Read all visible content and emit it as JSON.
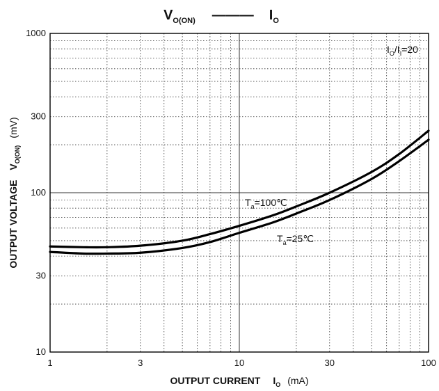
{
  "chart_data": {
    "type": "line",
    "title": {
      "left_main": "V",
      "left_sub": "O(ON)",
      "right_main": "I",
      "right_sub": "O"
    },
    "xlabel": {
      "text": "OUTPUT CURRENT",
      "symbol_main": "I",
      "symbol_sub": "O",
      "unit": "(mA)"
    },
    "ylabel": {
      "text": "OUTPUT VOLTAGE",
      "symbol_main": "V",
      "symbol_sub": "O(ON)",
      "unit": "(mV)"
    },
    "x_scale": "log",
    "y_scale": "log",
    "xlim": [
      1,
      100
    ],
    "ylim": [
      10,
      1000
    ],
    "x_ticks": [
      {
        "value": 1,
        "label": "1"
      },
      {
        "value": 3,
        "label": "3"
      },
      {
        "value": 10,
        "label": "10"
      },
      {
        "value": 30,
        "label": "30"
      },
      {
        "value": 100,
        "label": "100"
      }
    ],
    "y_ticks": [
      {
        "value": 10,
        "label": "10"
      },
      {
        "value": 30,
        "label": "30"
      },
      {
        "value": 100,
        "label": "100"
      },
      {
        "value": 300,
        "label": "300"
      },
      {
        "value": 1000,
        "label": "1000"
      }
    ],
    "grid": true,
    "condition": {
      "sym": "I",
      "sub1": "O",
      "mid": "/I",
      "sub2": "I",
      "value": "=20"
    },
    "series": [
      {
        "label_main": "T",
        "label_sub": "a",
        "label_value": "=100℃",
        "x": [
          1,
          1.5,
          2,
          3,
          5,
          7,
          10,
          15,
          20,
          30,
          50,
          70,
          100
        ],
        "y": [
          46,
          45.5,
          45.5,
          46.5,
          50,
          55,
          62,
          72,
          82,
          100,
          135,
          175,
          245
        ]
      },
      {
        "label_main": "T",
        "label_sub": "a",
        "label_value": "=25℃",
        "x": [
          1,
          1.5,
          2,
          3,
          5,
          7,
          10,
          15,
          20,
          30,
          50,
          70,
          100
        ],
        "y": [
          42.5,
          41.5,
          41.5,
          42,
          45,
          49,
          56,
          65,
          74,
          90,
          122,
          158,
          215
        ]
      }
    ],
    "colors": {
      "line": "#000000",
      "grid": "#333333"
    }
  }
}
